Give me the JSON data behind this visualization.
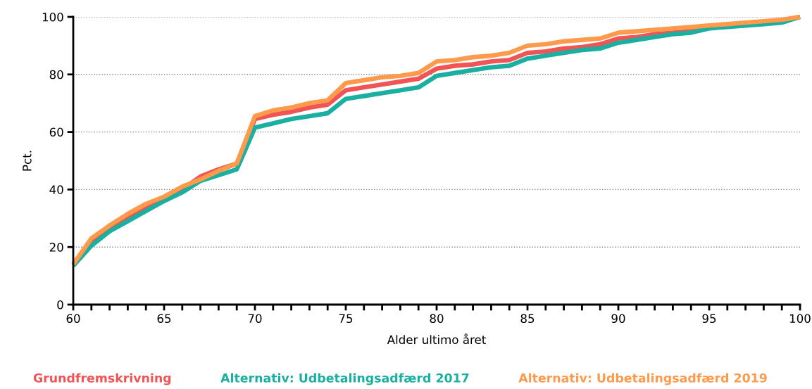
{
  "chart_data": {
    "type": "line",
    "xlabel": "Alder ultimo året",
    "ylabel": "Pct.",
    "x": [
      60,
      61,
      62,
      63,
      64,
      65,
      66,
      67,
      68,
      69,
      70,
      71,
      72,
      73,
      74,
      75,
      76,
      77,
      78,
      79,
      80,
      81,
      82,
      83,
      84,
      85,
      86,
      87,
      88,
      89,
      90,
      91,
      92,
      93,
      94,
      95,
      96,
      97,
      98,
      99,
      100
    ],
    "series": [
      {
        "name": "Grundfremskrivning",
        "color": "#f05454",
        "values": [
          14,
          22,
          26.5,
          30.5,
          34,
          37,
          40,
          44.5,
          47,
          49,
          64.5,
          66,
          67,
          68.5,
          69.5,
          74.5,
          75.5,
          76.5,
          77.5,
          78.5,
          82,
          83,
          83.5,
          84.5,
          85,
          87.5,
          88,
          89,
          89.5,
          90.5,
          92.5,
          93,
          94,
          94.5,
          95,
          96.5,
          97,
          97.5,
          98,
          98.5,
          100
        ]
      },
      {
        "name": "Alternativ: Udbetalingsadfærd 2017",
        "color": "#1aafa0",
        "values": [
          13.5,
          20.5,
          25.5,
          29,
          32.5,
          36,
          39,
          43,
          45,
          47,
          61.5,
          63,
          64.5,
          65.5,
          66.5,
          71.5,
          72.5,
          73.5,
          74.5,
          75.5,
          79.5,
          80.5,
          81.5,
          82.5,
          83,
          85.5,
          86.5,
          87.5,
          88.5,
          89,
          91,
          92,
          93,
          94,
          94.5,
          96,
          96.5,
          97,
          97.5,
          98,
          100
        ]
      },
      {
        "name": "Alternativ: Udbetalingsadfærd 2019",
        "color": "#fd9a4c",
        "values": [
          14,
          23,
          27.5,
          31.5,
          35,
          37.5,
          41,
          43.5,
          46.5,
          49,
          65.5,
          67.5,
          68.5,
          70,
          71,
          77,
          78,
          79,
          79.5,
          80.5,
          84.5,
          85,
          86,
          86.5,
          87.5,
          90,
          90.5,
          91.5,
          92,
          92.5,
          94.5,
          95,
          95.5,
          96,
          96.5,
          97,
          97.5,
          98,
          98.5,
          99,
          100
        ]
      }
    ],
    "xlim": [
      60,
      100
    ],
    "xticks": [
      60,
      {
        "value": 61,
        "label": null
      },
      {
        "value": 62,
        "label": null
      },
      {
        "value": 63,
        "label": null
      },
      {
        "value": 64,
        "label": null
      },
      65,
      {
        "value": 66,
        "label": null
      },
      {
        "value": 67,
        "label": null
      },
      {
        "value": 68,
        "label": null
      },
      {
        "value": 69,
        "label": null
      },
      70,
      {
        "value": 71,
        "label": null
      },
      {
        "value": 72,
        "label": null
      },
      {
        "value": 73,
        "label": null
      },
      {
        "value": 74,
        "label": null
      },
      75,
      {
        "value": 76,
        "label": null
      },
      {
        "value": 77,
        "label": null
      },
      {
        "value": 78,
        "label": null
      },
      {
        "value": 79,
        "label": null
      },
      80,
      {
        "value": 81,
        "label": null
      },
      {
        "value": 82,
        "label": null
      },
      {
        "value": 83,
        "label": null
      },
      {
        "value": 84,
        "label": null
      },
      85,
      {
        "value": 86,
        "label": null
      },
      {
        "value": 87,
        "label": null
      },
      {
        "value": 88,
        "label": null
      },
      {
        "value": 89,
        "label": null
      },
      90,
      {
        "value": 91,
        "label": null
      },
      {
        "value": 92,
        "label": null
      },
      {
        "value": 93,
        "label": null
      },
      {
        "value": 94,
        "label": null
      },
      95,
      {
        "value": 96,
        "label": null
      },
      {
        "value": 97,
        "label": null
      },
      {
        "value": 98,
        "label": null
      },
      {
        "value": 99,
        "label": null
      },
      100
    ],
    "ylim": [
      0,
      100
    ],
    "yticks": [
      0,
      20,
      40,
      60,
      80,
      100
    ],
    "grid": "y",
    "legend": "bottom",
    "marker": "none",
    "line_style": "solid"
  }
}
